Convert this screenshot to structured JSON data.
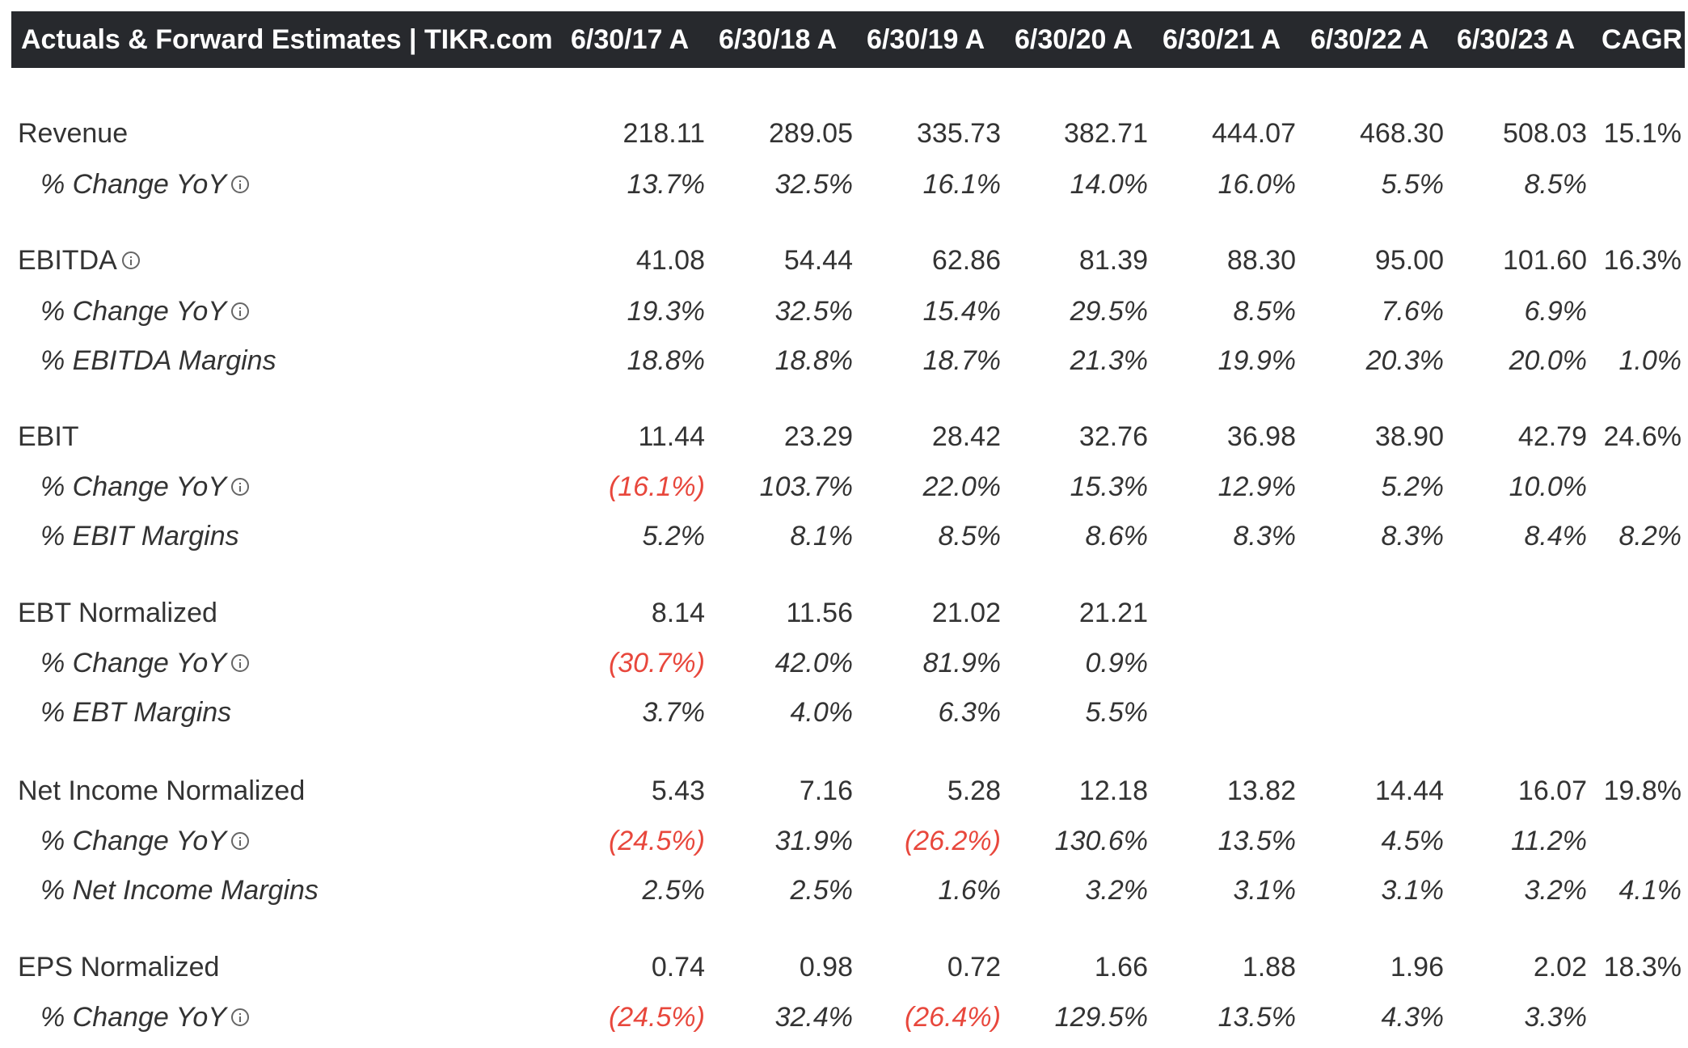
{
  "header": {
    "title": "Actuals & Forward Estimates | TIKR.com",
    "columns": [
      "6/30/17 A",
      "6/30/18 A",
      "6/30/19 A",
      "6/30/20 A",
      "6/30/21 A",
      "6/30/22 A",
      "6/30/23 A",
      "CAGR"
    ]
  },
  "colors": {
    "header_background": "#27292d",
    "header_text": "#ffffff",
    "text": "#333333",
    "negative": "#e8473c"
  },
  "rows": [
    {
      "label": "Revenue",
      "style": "main",
      "info_icon": false,
      "values": [
        "218.11",
        "289.05",
        "335.73",
        "382.71",
        "444.07",
        "468.30",
        "508.03",
        "15.1%"
      ]
    },
    {
      "label": "% Change YoY",
      "style": "sub",
      "info_icon": true,
      "values": [
        "13.7%",
        "32.5%",
        "16.1%",
        "14.0%",
        "16.0%",
        "5.5%",
        "8.5%",
        ""
      ]
    },
    {
      "label": "EBITDA",
      "style": "main",
      "info_icon": true,
      "values": [
        "41.08",
        "54.44",
        "62.86",
        "81.39",
        "88.30",
        "95.00",
        "101.60",
        "16.3%"
      ]
    },
    {
      "label": "% Change YoY",
      "style": "sub",
      "info_icon": true,
      "values": [
        "19.3%",
        "32.5%",
        "15.4%",
        "29.5%",
        "8.5%",
        "7.6%",
        "6.9%",
        ""
      ]
    },
    {
      "label": "% EBITDA Margins",
      "style": "sub",
      "info_icon": false,
      "values": [
        "18.8%",
        "18.8%",
        "18.7%",
        "21.3%",
        "19.9%",
        "20.3%",
        "20.0%",
        "1.0%"
      ]
    },
    {
      "label": "EBIT",
      "style": "main",
      "info_icon": false,
      "values": [
        "11.44",
        "23.29",
        "28.42",
        "32.76",
        "36.98",
        "38.90",
        "42.79",
        "24.6%"
      ]
    },
    {
      "label": "% Change YoY",
      "style": "sub",
      "info_icon": true,
      "values": [
        "(16.1%)",
        "103.7%",
        "22.0%",
        "15.3%",
        "12.9%",
        "5.2%",
        "10.0%",
        ""
      ]
    },
    {
      "label": "% EBIT Margins",
      "style": "sub",
      "info_icon": false,
      "values": [
        "5.2%",
        "8.1%",
        "8.5%",
        "8.6%",
        "8.3%",
        "8.3%",
        "8.4%",
        "8.2%"
      ]
    },
    {
      "label": "EBT Normalized",
      "style": "main",
      "info_icon": false,
      "values": [
        "8.14",
        "11.56",
        "21.02",
        "21.21",
        "",
        "",
        "",
        ""
      ]
    },
    {
      "label": "% Change YoY",
      "style": "sub",
      "info_icon": true,
      "values": [
        "(30.7%)",
        "42.0%",
        "81.9%",
        "0.9%",
        "",
        "",
        "",
        ""
      ]
    },
    {
      "label": "% EBT Margins",
      "style": "sub",
      "info_icon": false,
      "values": [
        "3.7%",
        "4.0%",
        "6.3%",
        "5.5%",
        "",
        "",
        "",
        ""
      ]
    },
    {
      "label": "Net Income Normalized",
      "style": "main",
      "info_icon": false,
      "values": [
        "5.43",
        "7.16",
        "5.28",
        "12.18",
        "13.82",
        "14.44",
        "16.07",
        "19.8%"
      ]
    },
    {
      "label": "% Change YoY",
      "style": "sub",
      "info_icon": true,
      "values": [
        "(24.5%)",
        "31.9%",
        "(26.2%)",
        "130.6%",
        "13.5%",
        "4.5%",
        "11.2%",
        ""
      ]
    },
    {
      "label": "% Net Income Margins",
      "style": "sub",
      "info_icon": false,
      "values": [
        "2.5%",
        "2.5%",
        "1.6%",
        "3.2%",
        "3.1%",
        "3.1%",
        "3.2%",
        "4.1%"
      ]
    },
    {
      "label": "EPS Normalized",
      "style": "main",
      "info_icon": false,
      "values": [
        "0.74",
        "0.98",
        "0.72",
        "1.66",
        "1.88",
        "1.96",
        "2.02",
        "18.3%"
      ]
    },
    {
      "label": "% Change YoY",
      "style": "sub",
      "info_icon": true,
      "values": [
        "(24.5%)",
        "32.4%",
        "(26.4%)",
        "129.5%",
        "13.5%",
        "4.3%",
        "3.3%",
        ""
      ]
    }
  ]
}
